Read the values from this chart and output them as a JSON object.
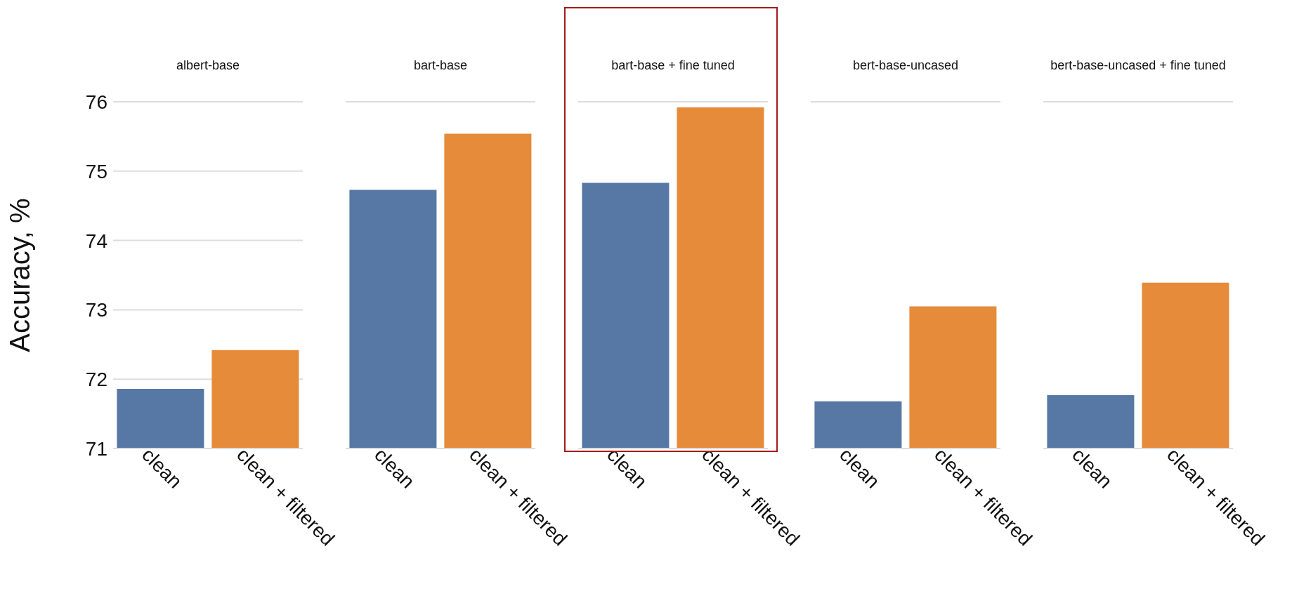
{
  "chart_data": [
    {
      "type": "bar",
      "title": "albert-base",
      "ylabel": "Accuracy, %",
      "categories": [
        "clean",
        "clean + filtered"
      ],
      "values": [
        71.86,
        72.42
      ],
      "colors": [
        "#5778a4",
        "#e58b3a"
      ],
      "ylim": [
        71,
        76
      ],
      "yticks": [
        71,
        72,
        73,
        74,
        75,
        76
      ],
      "grid": "y"
    },
    {
      "type": "bar",
      "title": "bart-base",
      "categories": [
        "clean",
        "clean + filtered"
      ],
      "values": [
        74.73,
        75.54
      ],
      "colors": [
        "#5778a4",
        "#e58b3a"
      ],
      "ylim": [
        71,
        76
      ],
      "yticks": [
        71,
        72,
        73,
        74,
        75,
        76
      ],
      "grid": "y",
      "tick_labels": "x"
    },
    {
      "type": "bar",
      "title": "bart-base + fine tuned",
      "categories": [
        "clean",
        "clean + filtered"
      ],
      "values": [
        74.83,
        75.92
      ],
      "colors": [
        "#5778a4",
        "#e58b3a"
      ],
      "ylim": [
        71,
        76
      ],
      "yticks": [
        71,
        72,
        73,
        74,
        75,
        76
      ],
      "grid": "y",
      "tick_labels": "x"
    },
    {
      "type": "bar",
      "title": "bert-base-uncased",
      "categories": [
        "clean",
        "clean + filtered"
      ],
      "values": [
        71.68,
        73.05
      ],
      "colors": [
        "#5778a4",
        "#e58b3a"
      ],
      "ylim": [
        71,
        76
      ],
      "yticks": [
        71,
        72,
        73,
        74,
        75,
        76
      ],
      "grid": "y",
      "tick_labels": "x"
    },
    {
      "type": "bar",
      "title": "bert-base-uncased + fine tuned",
      "categories": [
        "clean",
        "clean + filtered"
      ],
      "values": [
        71.77,
        73.39
      ],
      "colors": [
        "#5778a4",
        "#e58b3a"
      ],
      "ylim": [
        71,
        76
      ],
      "yticks": [
        71,
        72,
        73,
        74,
        75,
        76
      ],
      "grid": "y",
      "tick_labels": "x"
    }
  ]
}
